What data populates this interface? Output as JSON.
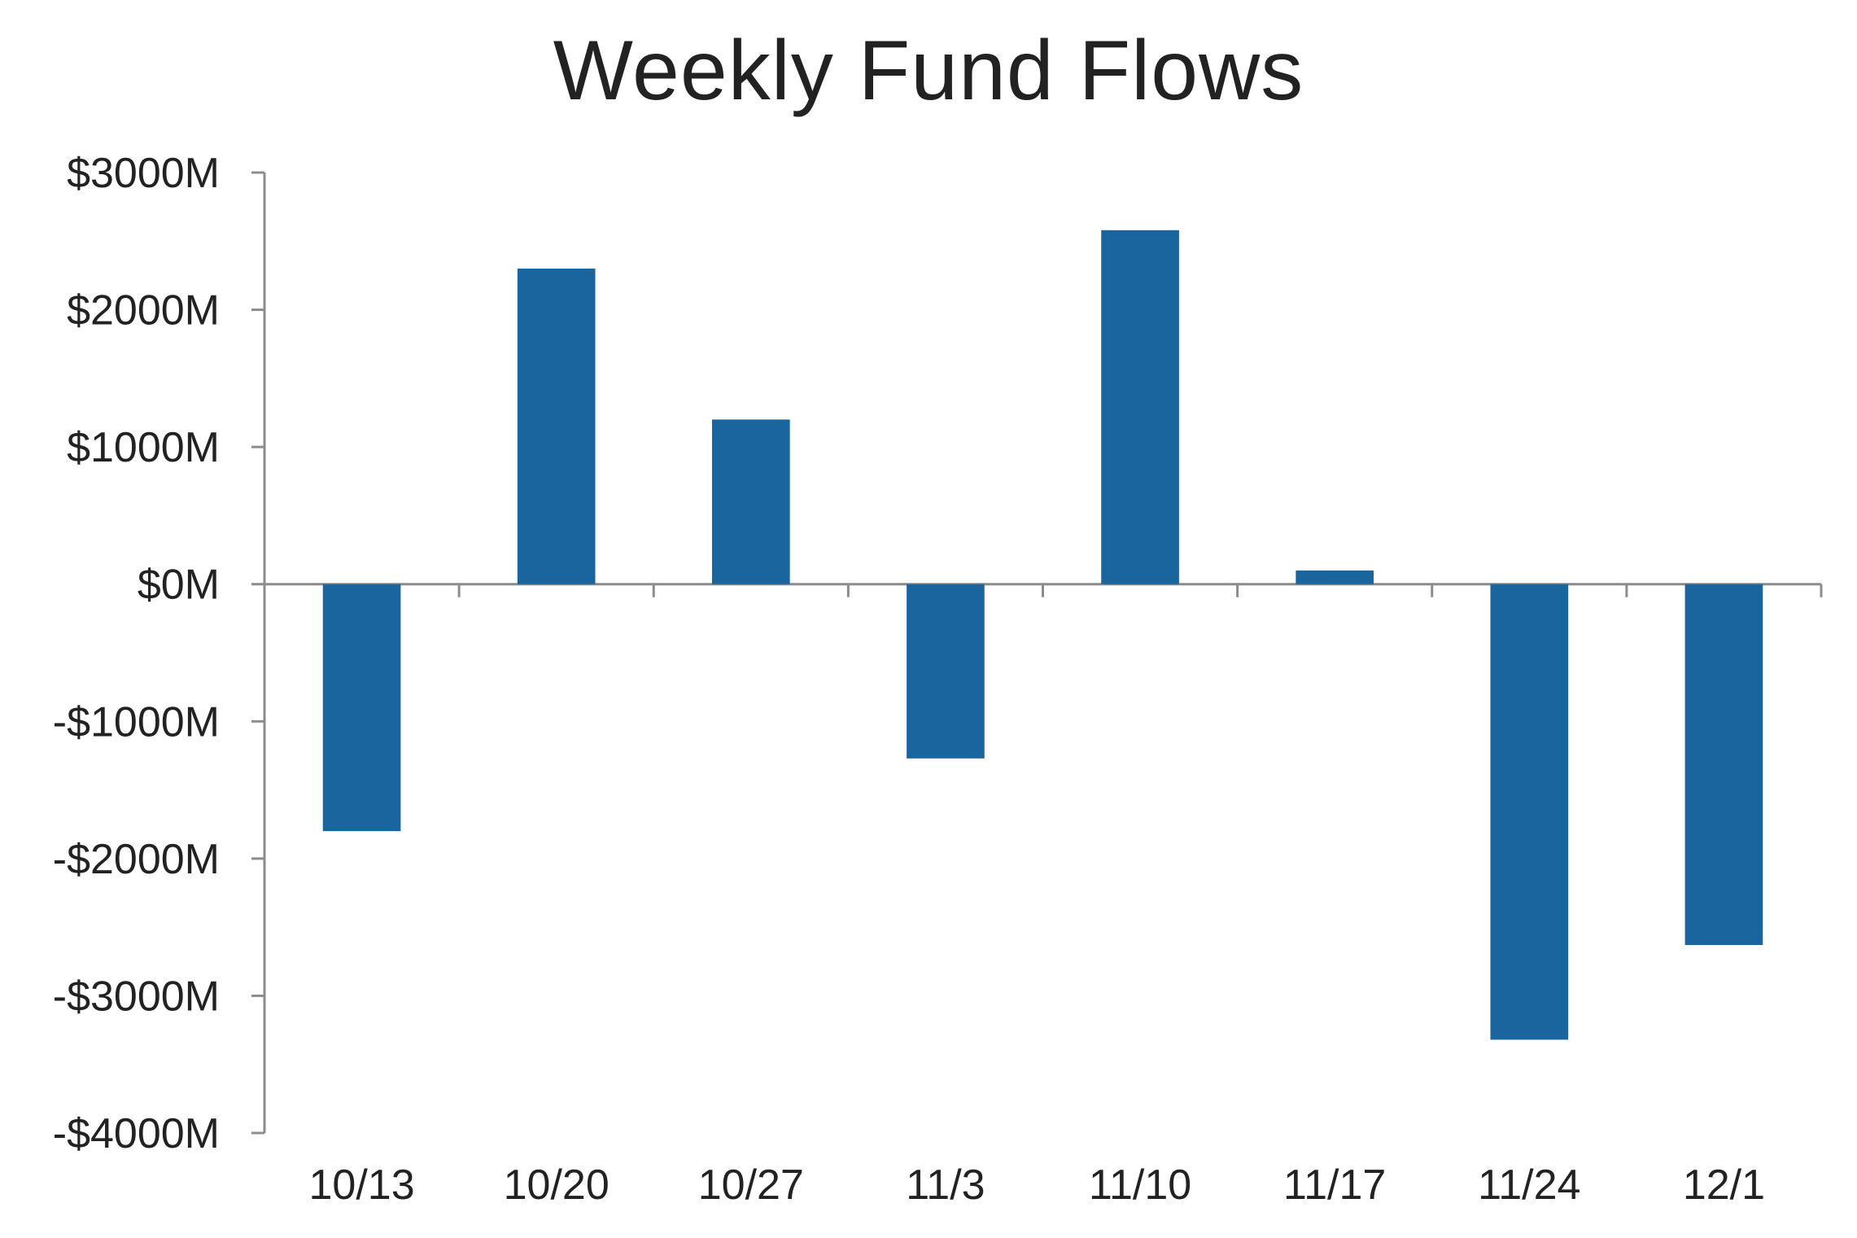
{
  "chart_data": {
    "type": "bar",
    "title": "Weekly Fund Flows",
    "xlabel": "",
    "ylabel": "",
    "categories": [
      "10/13",
      "10/20",
      "10/27",
      "11/3",
      "11/10",
      "11/17",
      "11/24",
      "12/1"
    ],
    "values": [
      -1800,
      2300,
      1200,
      -1270,
      2580,
      100,
      -3320,
      -2630
    ],
    "ylim": [
      -4000,
      3000
    ],
    "yticks": [
      3000,
      2000,
      1000,
      0,
      -1000,
      -2000,
      -3000,
      -4000
    ],
    "ytick_labels": [
      "$3000M",
      "$2000M",
      "$1000M",
      "$0M",
      "-$1000M",
      "-$2000M",
      "-$3000M",
      "-$4000M"
    ],
    "bar_color": "#1a659e",
    "axis_color": "#8c8c8c",
    "grid": false,
    "legend": "none"
  }
}
